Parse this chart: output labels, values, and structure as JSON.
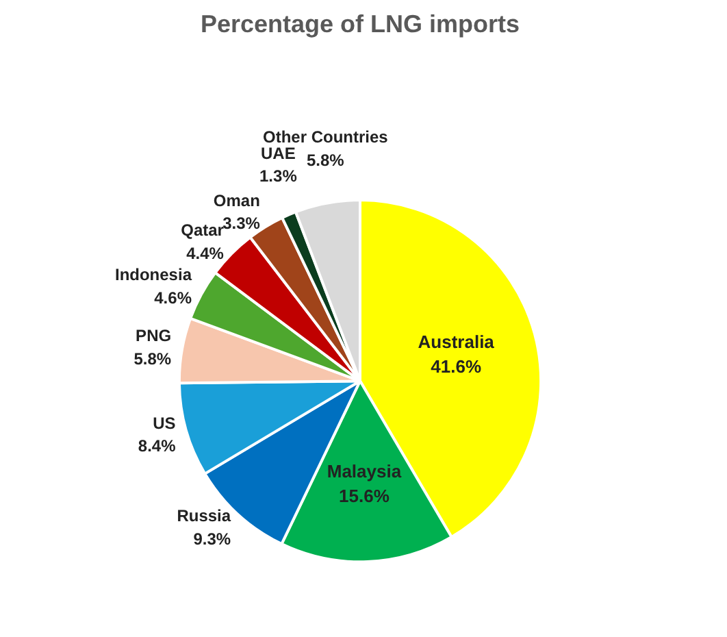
{
  "chart_data": {
    "type": "pie",
    "title": "Percentage of LNG imports",
    "categories": [
      "Australia",
      "Malaysia",
      "Russia",
      "US",
      "PNG",
      "Indonesia",
      "Qatar",
      "Oman",
      "UAE",
      "Other Countries"
    ],
    "values": [
      41.6,
      15.6,
      9.3,
      8.4,
      5.8,
      4.6,
      4.4,
      3.3,
      1.3,
      5.8
    ],
    "value_labels": [
      "41.6%",
      "15.6%",
      "9.3%",
      "8.4%",
      "5.8%",
      "4.6%",
      "4.4%",
      "3.3%",
      "1.3%",
      "5.8%"
    ],
    "colors": [
      "#ffff00",
      "#00b050",
      "#0070c0",
      "#1a9fd8",
      "#f7c6ad",
      "#4ea72e",
      "#c00000",
      "#a0441a",
      "#0b3d1e",
      "#d9d9d9"
    ]
  }
}
